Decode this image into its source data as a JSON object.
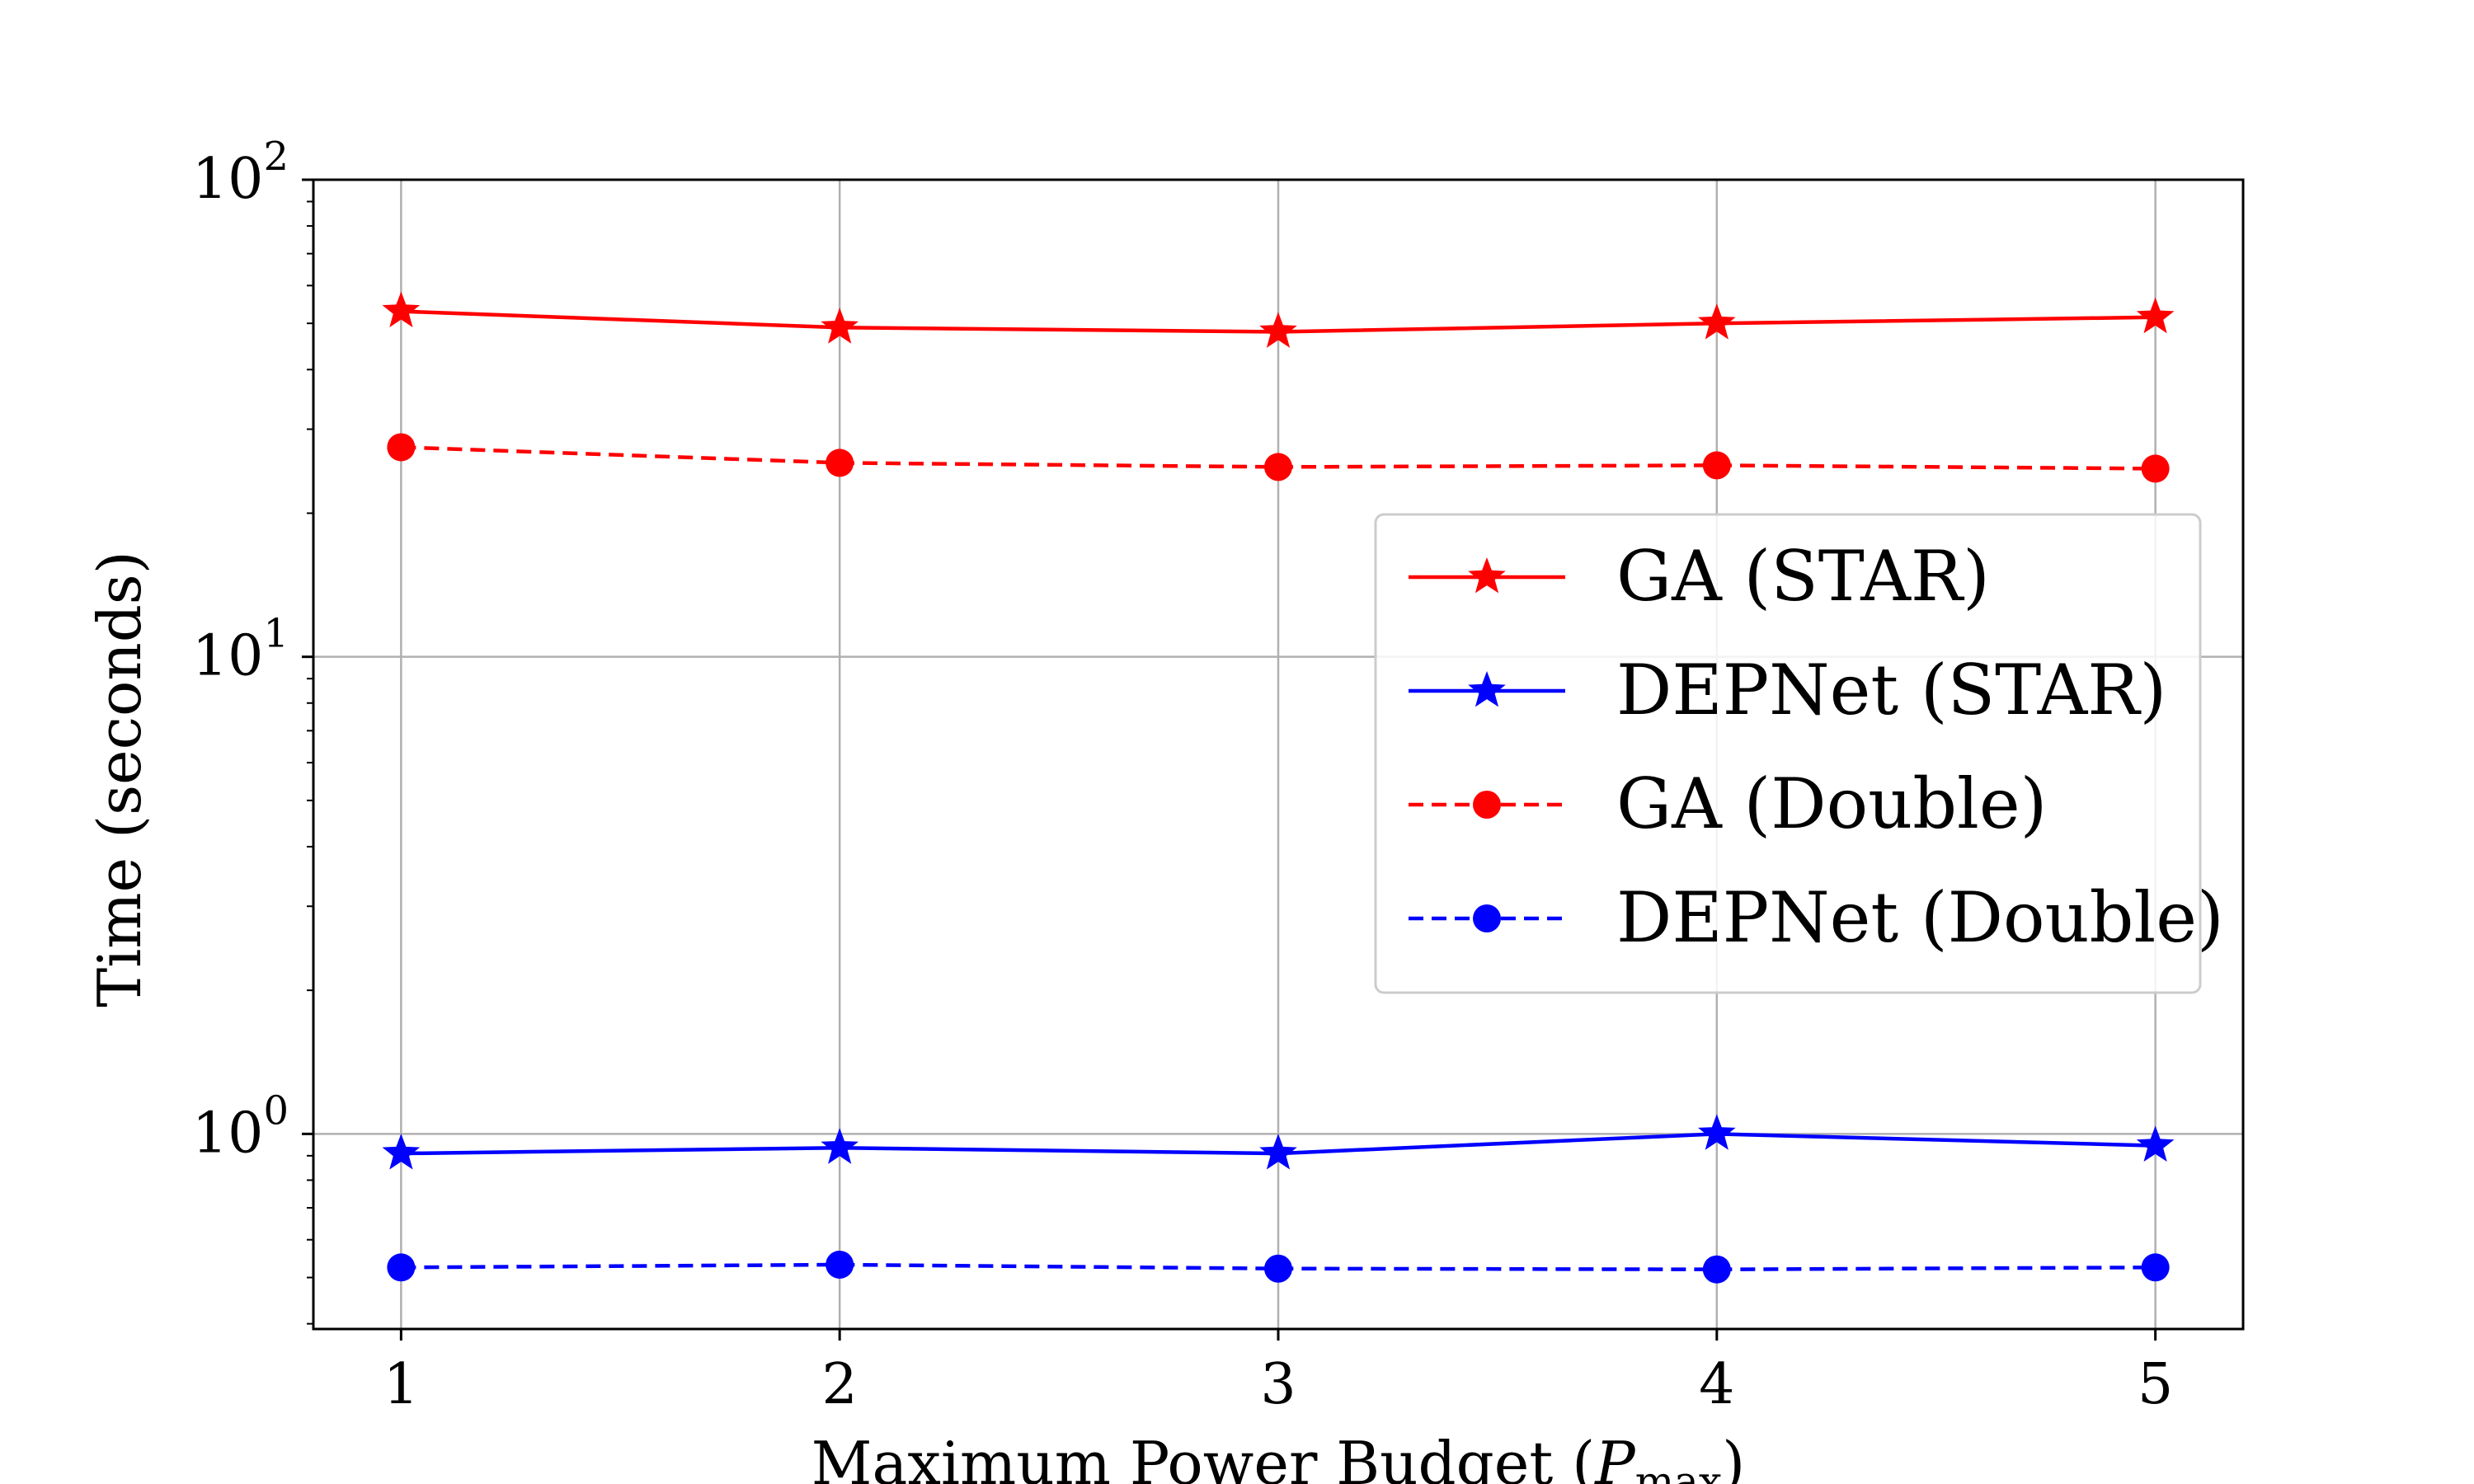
{
  "chart_data": {
    "type": "line",
    "title": "",
    "xlabel": "Maximum Power Budget (",
    "xlabel_symbol": "P",
    "xlabel_subscript": "max",
    "xlabel_close": ")",
    "ylabel": "Time (seconds)",
    "yscale": "log",
    "x": [
      1,
      2,
      3,
      4,
      5
    ],
    "xticks": [
      "1",
      "2",
      "3",
      "4",
      "5"
    ],
    "xlim": [
      0.8,
      5.2
    ],
    "ylim": [
      0.39,
      100
    ],
    "yticks": [
      {
        "value": 1,
        "base": "10",
        "exp": "0"
      },
      {
        "value": 10,
        "base": "10",
        "exp": "1"
      },
      {
        "value": 100,
        "base": "10",
        "exp": "2"
      }
    ],
    "grid": true,
    "legend_position": "center-right",
    "series": [
      {
        "name": "GA (STAR)",
        "color": "#ff0000",
        "line": "solid",
        "marker": "star",
        "values": [
          53,
          49,
          48,
          50,
          51.5
        ]
      },
      {
        "name": "DEPNet (STAR)",
        "color": "#0000ff",
        "line": "solid",
        "marker": "star",
        "values": [
          0.91,
          0.935,
          0.91,
          1.0,
          0.945
        ]
      },
      {
        "name": "GA (Double)",
        "color": "#ff0000",
        "line": "dashed",
        "marker": "circle",
        "values": [
          27.5,
          25.5,
          25,
          25.2,
          24.8
        ]
      },
      {
        "name": "DEPNet (Double)",
        "color": "#0000ff",
        "line": "dashed",
        "marker": "circle",
        "values": [
          0.525,
          0.532,
          0.522,
          0.52,
          0.525
        ]
      }
    ]
  }
}
